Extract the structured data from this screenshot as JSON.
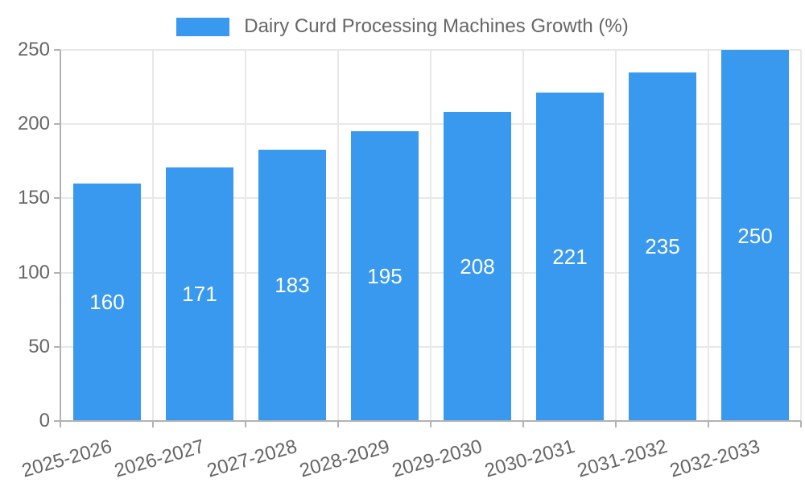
{
  "legend": {
    "label": "Dairy Curd Processing Machines Growth (%)"
  },
  "colors": {
    "bar": "#3999ee",
    "bar_label": "#ffffff",
    "grid": "#e8e8e8",
    "axis": "#b2b2b2",
    "text": "#666666",
    "background": "#ffffff"
  },
  "chart_data": {
    "type": "bar",
    "title": "Dairy Curd Processing Machines Growth (%)",
    "categories": [
      "2025-2026",
      "2026-2027",
      "2027-2028",
      "2028-2029",
      "2029-2030",
      "2030-2031",
      "2031-2032",
      "2032-2033"
    ],
    "values": [
      160,
      171,
      183,
      195,
      208,
      221,
      235,
      250
    ],
    "xlabel": "",
    "ylabel": "",
    "ylim": [
      0,
      250
    ],
    "yticks": [
      0,
      50,
      100,
      150,
      200,
      250
    ],
    "grid": true,
    "legend_position": "top",
    "bar_labels": "inside-center"
  }
}
